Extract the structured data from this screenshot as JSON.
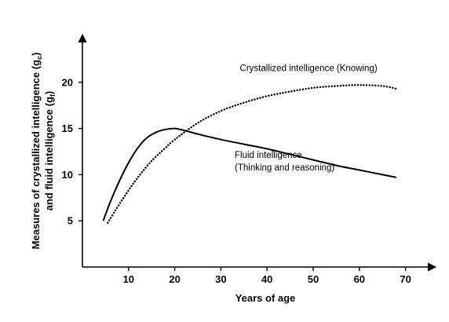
{
  "chart_data": {
    "type": "line",
    "title": "",
    "xlabel": "Years of age",
    "ylabel_line1": "Measures of crystallized intelligence (g",
    "ylabel_line1_sub": "c",
    "ylabel_line1_end": ")",
    "ylabel_line2": "and fluid intelligence (g",
    "ylabel_line2_sub": "f",
    "ylabel_line2_end": ")",
    "xlim": [
      0,
      80
    ],
    "ylim": [
      0,
      25
    ],
    "x_ticks": [
      10,
      20,
      30,
      40,
      50,
      60,
      70
    ],
    "y_ticks": [
      5,
      10,
      15,
      20
    ],
    "grid": false,
    "series": [
      {
        "name": "Fluid intelligence (Thinking and reasoning)",
        "style": "solid",
        "x": [
          4.5,
          6,
          8,
          10,
          12,
          14,
          16,
          18,
          20,
          22,
          25,
          30,
          35,
          40,
          45,
          50,
          55,
          60,
          65,
          68
        ],
        "y": [
          5,
          7,
          9.3,
          11.3,
          12.9,
          14.0,
          14.6,
          14.9,
          15.0,
          14.8,
          14.4,
          13.8,
          13.3,
          12.8,
          12.2,
          11.6,
          11.0,
          10.5,
          10.0,
          9.7
        ]
      },
      {
        "name": "Crystallized intelligence (Knowing)",
        "style": "dotted",
        "x": [
          5.5,
          8,
          10,
          12,
          15,
          18,
          20,
          25,
          30,
          35,
          40,
          45,
          50,
          55,
          60,
          65,
          68
        ],
        "y": [
          4.8,
          6.8,
          8.3,
          9.7,
          11.5,
          12.9,
          13.8,
          15.6,
          16.9,
          17.8,
          18.5,
          19.0,
          19.4,
          19.6,
          19.7,
          19.6,
          19.3
        ]
      }
    ],
    "annotations": [
      {
        "series": 1,
        "lines": [
          "Crystallized intelligence  (Knowing)"
        ],
        "at": [
          49,
          21.2
        ]
      },
      {
        "series": 0,
        "lines": [
          "Fluid intelligence",
          "(Thinking and reasoning)"
        ],
        "at": [
          33,
          11.8
        ]
      }
    ]
  }
}
